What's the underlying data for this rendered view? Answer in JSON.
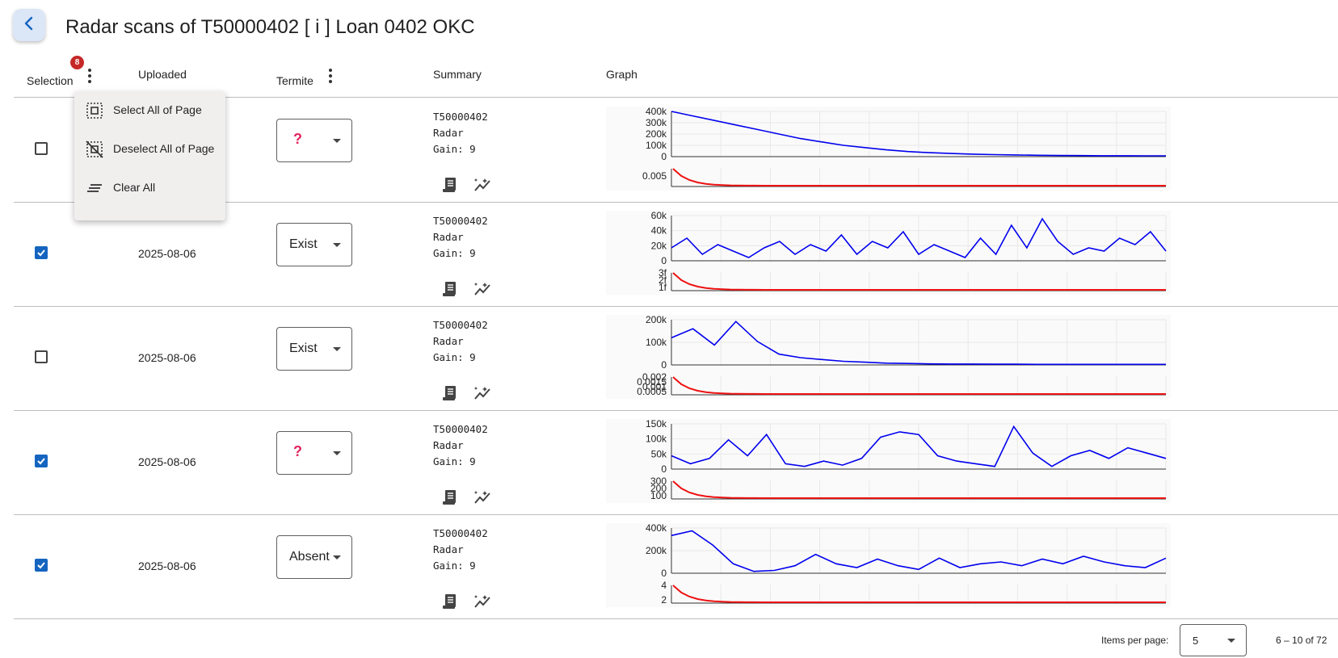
{
  "title": "Radar scans of T50000402 [ i ] Loan 0402 OKC",
  "columns": {
    "selection": "Selection",
    "uploaded": "Uploaded",
    "termite": "Termite",
    "summary": "Summary",
    "graph": "Graph"
  },
  "selection_count": "8",
  "menu": [
    {
      "label": "Select All of Page",
      "icon": "select-all-icon"
    },
    {
      "label": "Deselect All of Page",
      "icon": "deselect-all-icon"
    },
    {
      "label": "Clear All",
      "icon": "clear-all-icon"
    }
  ],
  "rows": [
    {
      "checked": false,
      "uploaded": "",
      "termite": "?",
      "summary": [
        "T50000402",
        "Radar",
        "Gain: 9"
      ]
    },
    {
      "checked": true,
      "uploaded": "2025-08-06",
      "termite": "Exist",
      "summary": [
        "T50000402",
        "Radar",
        "Gain: 9"
      ]
    },
    {
      "checked": false,
      "uploaded": "2025-08-06",
      "termite": "Exist",
      "summary": [
        "T50000402",
        "Radar",
        "Gain: 9"
      ]
    },
    {
      "checked": true,
      "uploaded": "2025-08-06",
      "termite": "?",
      "summary": [
        "T50000402",
        "Radar",
        "Gain: 9"
      ]
    },
    {
      "checked": true,
      "uploaded": "2025-08-06",
      "termite": "Absent",
      "summary": [
        "T50000402",
        "Radar",
        "Gain: 9"
      ]
    }
  ],
  "colors": {
    "accent": "#1565c0",
    "radar_line": "#0000ee",
    "decay_line": "#ee1111",
    "badge": "#c62828"
  },
  "chart_data": [
    {
      "type": "line",
      "series": [
        {
          "color": "#0000ee",
          "values": [
            400000,
            360000,
            320000,
            280000,
            240000,
            200000,
            160000,
            130000,
            100000,
            80000,
            60000,
            45000,
            35000,
            28000,
            22000,
            18000,
            15000,
            12000,
            10000,
            9000,
            8000,
            8000,
            7000,
            7000
          ]
        }
      ],
      "yticks": [
        "400k",
        "300k",
        "200k",
        "100k",
        "0"
      ],
      "ylim": [
        0,
        400000
      ],
      "lower": {
        "yticks": [
          "0.005"
        ]
      }
    },
    {
      "type": "line",
      "series": [
        {
          "color": "#0000ee",
          "values": [
            20000,
            35000,
            10000,
            25000,
            15000,
            5000,
            20000,
            30000,
            10000,
            25000,
            15000,
            40000,
            10000,
            30000,
            20000,
            45000,
            10000,
            25000,
            15000,
            5000,
            35000,
            10000,
            55000,
            20000,
            65000,
            30000,
            10000,
            20000,
            15000,
            35000,
            25000,
            45000,
            15000
          ]
        }
      ],
      "yticks": [
        "60k",
        "40k",
        "20k",
        "0"
      ],
      "ylim": [
        0,
        70000
      ],
      "lower": {
        "yticks": [
          "3f",
          "2f",
          "1f"
        ]
      }
    },
    {
      "type": "line",
      "series": [
        {
          "color": "#0000ee",
          "values": [
            150000,
            200000,
            110000,
            240000,
            130000,
            60000,
            40000,
            30000,
            20000,
            15000,
            10000,
            8000,
            6000,
            5000,
            5000,
            4000,
            4000,
            3000,
            3000,
            3000,
            3000,
            3000,
            3000,
            3000
          ]
        }
      ],
      "yticks": [
        "200k",
        "100k",
        "0"
      ],
      "ylim": [
        0,
        250000
      ],
      "lower": {
        "yticks": [
          "0.002",
          "0.0015",
          "0.001",
          "0.0005"
        ]
      }
    },
    {
      "type": "line",
      "series": [
        {
          "color": "#0000ee",
          "values": [
            50000,
            20000,
            40000,
            110000,
            50000,
            130000,
            20000,
            10000,
            30000,
            15000,
            40000,
            120000,
            140000,
            130000,
            50000,
            30000,
            20000,
            10000,
            160000,
            60000,
            10000,
            50000,
            70000,
            40000,
            80000,
            60000,
            40000
          ]
        }
      ],
      "yticks": [
        "150k",
        "100k",
        "50k",
        "0"
      ],
      "ylim": [
        0,
        170000
      ],
      "lower": {
        "yticks": [
          "300",
          "200",
          "100"
        ]
      }
    },
    {
      "type": "line",
      "series": [
        {
          "color": "#0000ee",
          "values": [
            400000,
            450000,
            300000,
            100000,
            20000,
            30000,
            80000,
            200000,
            100000,
            60000,
            150000,
            80000,
            40000,
            160000,
            60000,
            100000,
            120000,
            80000,
            150000,
            100000,
            180000,
            120000,
            80000,
            60000,
            160000
          ]
        }
      ],
      "yticks": [
        "400k",
        "200k",
        "0"
      ],
      "ylim": [
        0,
        480000
      ],
      "lower": {
        "yticks": [
          "4",
          "2"
        ]
      }
    }
  ],
  "footer": {
    "items_per_page_label": "Items per page:",
    "items_per_page": "5",
    "range": "6 – 10 of 72"
  }
}
